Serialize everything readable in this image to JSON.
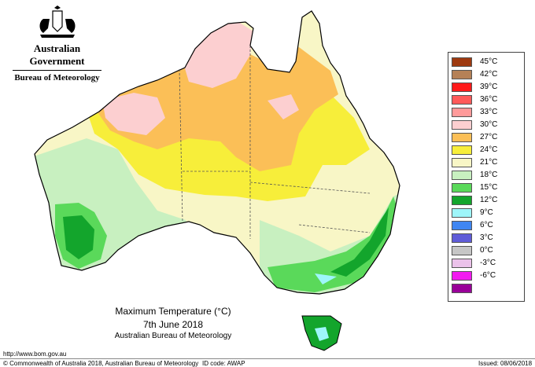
{
  "header": {
    "government": "Australian Government",
    "bureau": "Bureau of Meteorology"
  },
  "map": {
    "title": "Maximum Temperature (°C)",
    "date": "7th June 2018",
    "agency": "Australian Bureau of Meteorology"
  },
  "legend": [
    {
      "label": "45°C",
      "color": "#9e3a10"
    },
    {
      "label": "42°C",
      "color": "#b58157"
    },
    {
      "label": "39°C",
      "color": "#ff1a1a"
    },
    {
      "label": "36°C",
      "color": "#ff5a5a"
    },
    {
      "label": "33°C",
      "color": "#ff9a9a"
    },
    {
      "label": "30°C",
      "color": "#fccfd0"
    },
    {
      "label": "27°C",
      "color": "#fbbf57"
    },
    {
      "label": "24°C",
      "color": "#f7ee3a"
    },
    {
      "label": "21°C",
      "color": "#f8f6c6"
    },
    {
      "label": "18°C",
      "color": "#c8f0c0"
    },
    {
      "label": "15°C",
      "color": "#5ad95a"
    },
    {
      "label": "12°C",
      "color": "#13a52c"
    },
    {
      "label": "9°C",
      "color": "#9ef6fa"
    },
    {
      "label": "6°C",
      "color": "#3f86f2"
    },
    {
      "label": "3°C",
      "color": "#5f5cd8"
    },
    {
      "label": "0°C",
      "color": "#c6c6c6"
    },
    {
      "label": "-3°C",
      "color": "#ebc2ea"
    },
    {
      "label": "-6°C",
      "color": "#f21af0"
    },
    {
      "label": "",
      "color": "#990099"
    }
  ],
  "footer": {
    "url": "http://www.bom.gov.au",
    "copyright": "© Commonwealth of Australia 2018, Australian Bureau of Meteorology",
    "id_code": "ID code: AWAP",
    "issued": "Issued: 08/06/2018"
  }
}
